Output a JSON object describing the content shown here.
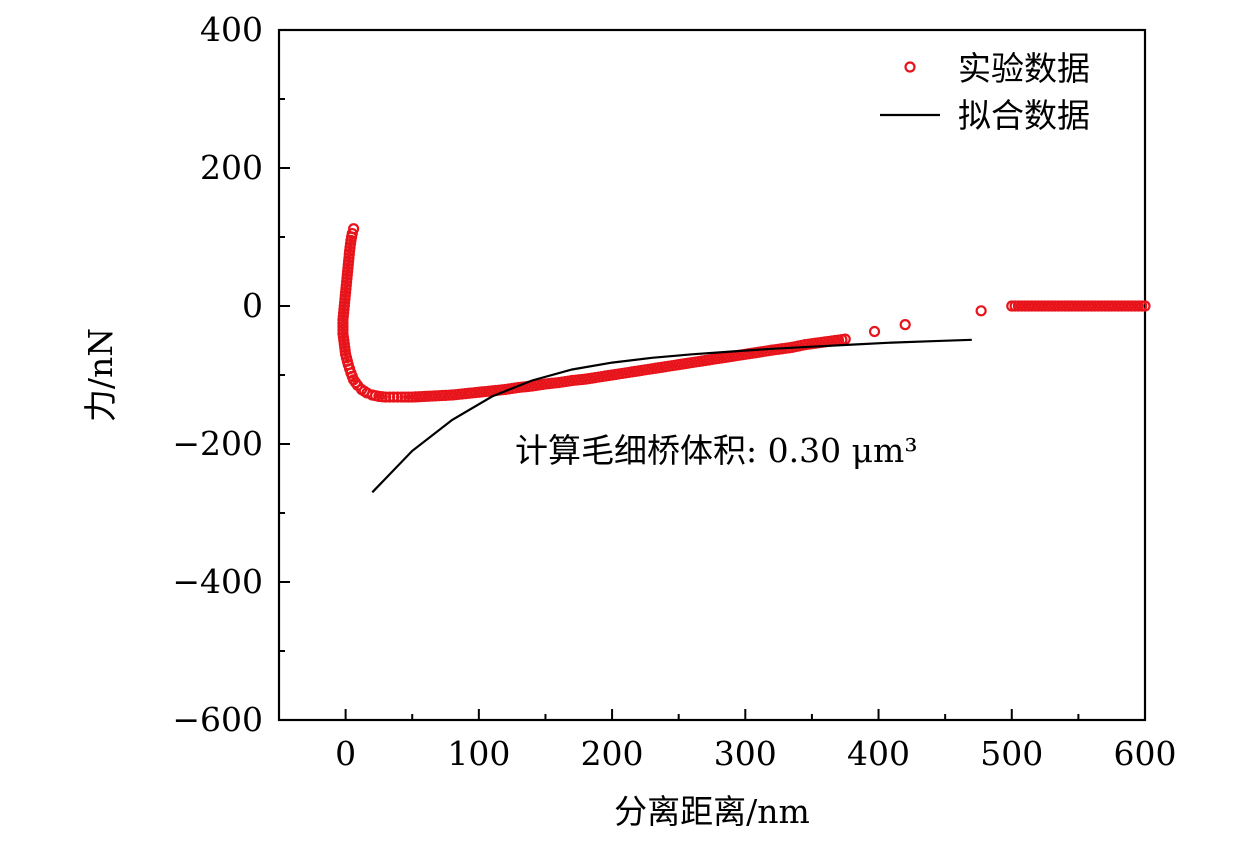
{
  "chart_data": {
    "type": "scatter",
    "title": "",
    "xlabel": "分离距离/nm",
    "ylabel": "力/nN",
    "xlim": [
      -50,
      600
    ],
    "ylim": [
      -600,
      400
    ],
    "xticks": [
      0,
      100,
      200,
      300,
      400,
      500,
      600
    ],
    "yticks": [
      -600,
      -400,
      -200,
      0,
      200,
      400
    ],
    "xtick_labels": [
      "0",
      "100",
      "200",
      "300",
      "400",
      "500",
      "600"
    ],
    "ytick_labels": [
      "−600",
      "−400",
      "−200",
      "0",
      "200",
      "400"
    ],
    "grid": false,
    "legend_position": "top-right",
    "annotation": "计算毛细桥体积: 0.30 μm³",
    "series": [
      {
        "name": "实验数据",
        "kind": "scatter",
        "color": "#e8141b",
        "x": [
          6,
          5,
          4,
          3,
          2,
          1,
          0,
          -1,
          -2,
          -2,
          -1,
          0,
          2,
          4,
          6,
          9,
          12,
          16,
          20,
          25,
          30,
          36,
          42,
          50,
          60,
          70,
          80,
          90,
          100,
          110,
          120,
          130,
          140,
          150,
          160,
          170,
          180,
          190,
          200,
          210,
          220,
          230,
          240,
          250,
          260,
          270,
          280,
          290,
          300,
          310,
          320,
          335,
          345,
          360,
          375,
          397,
          420,
          477,
          500,
          510,
          520,
          530,
          540,
          550,
          560,
          570,
          580,
          590,
          600
        ],
        "y": [
          112,
          105,
          95,
          80,
          60,
          40,
          20,
          0,
          -20,
          -40,
          -55,
          -70,
          -85,
          -97,
          -107,
          -115,
          -121,
          -126,
          -129,
          -131,
          -132,
          -132,
          -132,
          -132,
          -131,
          -130,
          -129,
          -127,
          -125,
          -123,
          -121,
          -118,
          -116,
          -113,
          -111,
          -108,
          -106,
          -103,
          -100,
          -97,
          -94,
          -91,
          -88,
          -85,
          -82,
          -79,
          -76,
          -73,
          -70,
          -67,
          -64,
          -60,
          -56,
          -52,
          -48,
          -37,
          -27,
          -7,
          0,
          0,
          0,
          0,
          0,
          0,
          0,
          0,
          0,
          0,
          0
        ]
      },
      {
        "name": "拟合数据",
        "kind": "line",
        "color": "#000000",
        "x": [
          20,
          50,
          80,
          110,
          140,
          170,
          200,
          230,
          260,
          290,
          320,
          350,
          380,
          410,
          440,
          470
        ],
        "y": [
          -270,
          -210,
          -165,
          -131,
          -108,
          -92,
          -82,
          -75,
          -70,
          -66,
          -62,
          -59,
          -56,
          -53,
          -51,
          -49
        ]
      }
    ]
  }
}
